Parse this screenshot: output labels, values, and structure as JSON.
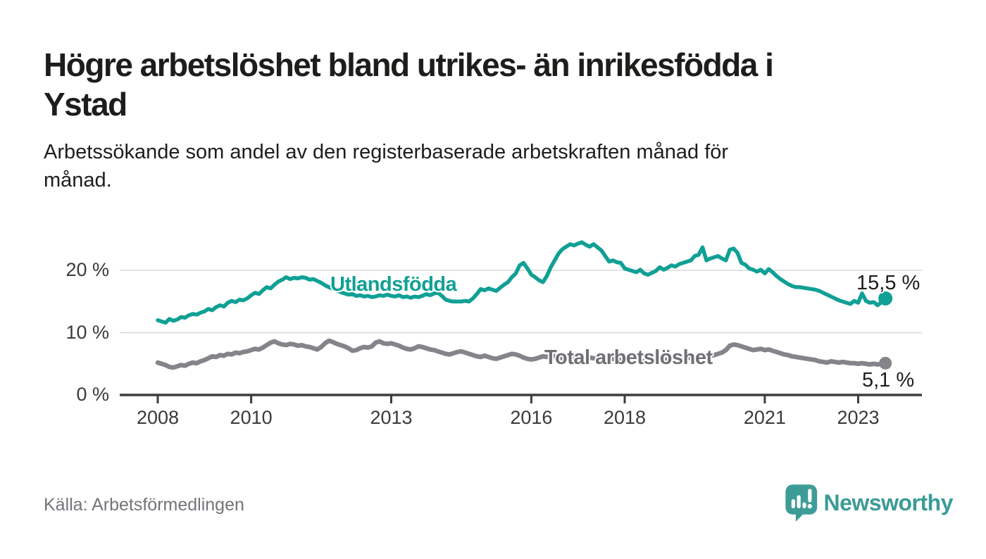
{
  "header": {
    "title": "Högre arbetslöshet bland utrikes- än inrikesfödda i\nYstad",
    "subtitle": "Arbetssökande som andel av den registerbaserade arbetskraften månad för\nmånad."
  },
  "chart_data": {
    "type": "line",
    "x_start": "2008-01",
    "x_end": "2023-08",
    "x_frequency": "monthly",
    "ylim": [
      0,
      26
    ],
    "grid": "horizontal",
    "yticks": [
      {
        "label": "0 %",
        "value": 0
      },
      {
        "label": "10 %",
        "value": 10
      },
      {
        "label": "20 %",
        "value": 20
      }
    ],
    "xticks": [
      {
        "label": "2008",
        "year": 2008
      },
      {
        "label": "2010",
        "year": 2010
      },
      {
        "label": "2013",
        "year": 2013
      },
      {
        "label": "2016",
        "year": 2016
      },
      {
        "label": "2018",
        "year": 2018
      },
      {
        "label": "2021",
        "year": 2021
      },
      {
        "label": "2023",
        "year": 2023
      }
    ],
    "series": [
      {
        "name": "Utlandsfödda",
        "color": "#10A095",
        "end_label": "15,5 %",
        "values": [
          12.0,
          11.8,
          11.6,
          12.2,
          11.9,
          12.1,
          12.5,
          12.4,
          12.8,
          13.0,
          12.9,
          13.2,
          13.4,
          13.8,
          13.6,
          14.1,
          14.4,
          14.2,
          14.8,
          15.1,
          14.9,
          15.3,
          15.2,
          15.5,
          16.0,
          16.4,
          16.2,
          16.8,
          17.3,
          17.1,
          17.7,
          18.2,
          18.5,
          18.9,
          18.6,
          18.8,
          18.7,
          18.9,
          18.8,
          18.5,
          18.6,
          18.3,
          18.0,
          17.6,
          17.3,
          17.0,
          16.8,
          16.5,
          16.3,
          16.1,
          16.2,
          15.9,
          16.0,
          15.8,
          15.9,
          15.7,
          15.8,
          16.0,
          15.9,
          16.1,
          15.9,
          15.8,
          16.0,
          15.7,
          15.8,
          15.6,
          15.8,
          15.7,
          15.9,
          16.2,
          16.0,
          16.3,
          16.4,
          15.9,
          15.3,
          15.1,
          15.0,
          15.0,
          15.0,
          15.1,
          15.0,
          15.5,
          16.2,
          17.0,
          16.8,
          17.1,
          16.9,
          16.7,
          17.2,
          17.7,
          18.1,
          18.9,
          19.5,
          20.8,
          21.2,
          20.3,
          19.3,
          18.9,
          18.4,
          18.1,
          19.1,
          20.5,
          21.6,
          22.7,
          23.4,
          23.8,
          24.2,
          24.0,
          24.3,
          24.5,
          24.1,
          23.8,
          24.2,
          23.7,
          23.2,
          22.3,
          21.4,
          21.6,
          21.3,
          21.2,
          20.3,
          20.1,
          19.9,
          19.7,
          20.1,
          19.5,
          19.3,
          19.6,
          19.9,
          20.5,
          20.1,
          20.4,
          20.8,
          20.6,
          21.0,
          21.2,
          21.4,
          21.6,
          22.3,
          22.5,
          23.7,
          21.6,
          21.9,
          22.1,
          22.3,
          21.9,
          21.6,
          23.3,
          23.5,
          22.8,
          21.2,
          20.9,
          20.3,
          20.1,
          19.8,
          20.1,
          19.5,
          20.2,
          19.7,
          19.1,
          18.6,
          18.2,
          17.8,
          17.5,
          17.3,
          17.3,
          17.2,
          17.1,
          17.0,
          16.9,
          16.7,
          16.4,
          16.1,
          15.8,
          15.5,
          15.2,
          15.0,
          14.8,
          14.6,
          15.1,
          14.8,
          16.3,
          15.1,
          14.8,
          14.9,
          14.4,
          14.9,
          15.5
        ]
      },
      {
        "name": "Total arbetslöshet",
        "color": "#84848A",
        "label_color": "#6F6F74",
        "end_label": "5,1 %",
        "values": [
          5.2,
          5.0,
          4.8,
          4.5,
          4.4,
          4.6,
          4.8,
          4.7,
          5.0,
          5.2,
          5.1,
          5.4,
          5.6,
          5.9,
          6.2,
          6.1,
          6.4,
          6.3,
          6.6,
          6.5,
          6.8,
          6.7,
          6.9,
          7.0,
          7.2,
          7.4,
          7.3,
          7.6,
          8.0,
          8.4,
          8.6,
          8.3,
          8.1,
          8.0,
          8.2,
          8.1,
          7.9,
          8.0,
          7.8,
          7.7,
          7.5,
          7.3,
          7.7,
          8.3,
          8.7,
          8.5,
          8.2,
          8.0,
          7.8,
          7.5,
          7.1,
          7.2,
          7.5,
          7.7,
          7.6,
          7.8,
          8.4,
          8.6,
          8.3,
          8.2,
          8.3,
          8.1,
          7.9,
          7.6,
          7.4,
          7.3,
          7.5,
          7.8,
          7.7,
          7.5,
          7.3,
          7.2,
          7.0,
          6.8,
          6.6,
          6.5,
          6.7,
          6.9,
          7.0,
          6.8,
          6.6,
          6.4,
          6.2,
          6.1,
          6.3,
          6.1,
          5.9,
          5.8,
          6.0,
          6.2,
          6.4,
          6.6,
          6.5,
          6.3,
          6.0,
          5.8,
          5.7,
          5.8,
          6.0,
          6.2,
          6.1,
          6.3,
          6.2,
          6.0,
          5.9,
          5.8,
          5.7,
          5.8,
          5.9,
          6.0,
          6.1,
          6.0,
          5.9,
          5.8,
          5.7,
          5.8,
          5.9,
          5.8,
          5.7,
          5.6,
          5.5,
          5.6,
          5.7,
          5.6,
          5.5,
          5.4,
          5.5,
          5.6,
          5.5,
          5.6,
          5.7,
          5.6,
          5.7,
          5.8,
          5.7,
          5.8,
          5.9,
          6.0,
          6.1,
          6.2,
          6.1,
          6.2,
          6.3,
          6.4,
          6.6,
          6.8,
          7.2,
          7.9,
          8.1,
          8.0,
          7.8,
          7.6,
          7.4,
          7.2,
          7.3,
          7.4,
          7.2,
          7.3,
          7.1,
          6.9,
          6.7,
          6.5,
          6.4,
          6.2,
          6.1,
          6.0,
          5.9,
          5.8,
          5.7,
          5.6,
          5.4,
          5.3,
          5.2,
          5.4,
          5.3,
          5.2,
          5.3,
          5.2,
          5.1,
          5.1,
          5.0,
          5.1,
          5.0,
          4.9,
          5.0,
          4.9,
          5.0,
          5.1
        ]
      }
    ]
  },
  "footer": {
    "source": "Källa: Arbetsförmedlingen",
    "brand": "Newsworthy"
  },
  "colors": {
    "accent_teal": "#10A095",
    "line_gray": "#84848A",
    "brand_teal": "#3B9B96",
    "axis": "#3D3D40",
    "gridline": "#D8D8D8"
  }
}
